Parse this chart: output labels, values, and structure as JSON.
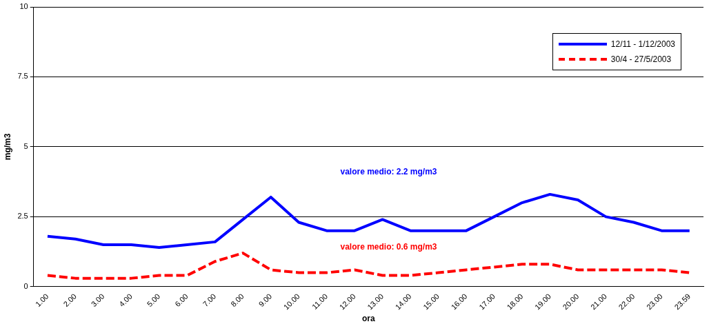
{
  "chart_data": {
    "type": "line",
    "xlabel": "ora",
    "ylabel": "mg/m3",
    "categories": [
      "1.00",
      "2.00",
      "3.00",
      "4.00",
      "5.00",
      "6.00",
      "7.00",
      "8.00",
      "9.00",
      "10.00",
      "11.00",
      "12.00",
      "13.00",
      "14.00",
      "15.00",
      "16.00",
      "17.00",
      "18.00",
      "19.00",
      "20.00",
      "21.00",
      "22.00",
      "23.00",
      "23.59"
    ],
    "series": [
      {
        "name": "12/11 - 1/12/2003",
        "color": "#0000ff",
        "line_style": "solid",
        "values": [
          1.8,
          1.7,
          1.5,
          1.5,
          1.4,
          1.5,
          1.6,
          2.4,
          3.2,
          2.3,
          2.0,
          2.0,
          2.4,
          2.0,
          2.0,
          2.0,
          2.5,
          3.0,
          3.3,
          3.1,
          2.5,
          2.3,
          2.0,
          2.0
        ]
      },
      {
        "name": "30/4 - 27/5/2003",
        "color": "#ff0000",
        "line_style": "dashed",
        "values": [
          0.4,
          0.3,
          0.3,
          0.3,
          0.4,
          0.4,
          0.9,
          1.2,
          0.6,
          0.5,
          0.5,
          0.6,
          0.4,
          0.4,
          0.5,
          0.6,
          0.7,
          0.8,
          0.8,
          0.6,
          0.6,
          0.6,
          0.6,
          0.5
        ]
      }
    ],
    "ylim": [
      0,
      10
    ],
    "yticks": [
      0,
      2.5,
      5,
      7.5,
      10
    ],
    "grid": "y",
    "legend": "top right",
    "marker": "none",
    "annotations": [
      "valore medio: 2.2 mg/m3",
      "valore medio: 0.6 mg/m3"
    ]
  }
}
